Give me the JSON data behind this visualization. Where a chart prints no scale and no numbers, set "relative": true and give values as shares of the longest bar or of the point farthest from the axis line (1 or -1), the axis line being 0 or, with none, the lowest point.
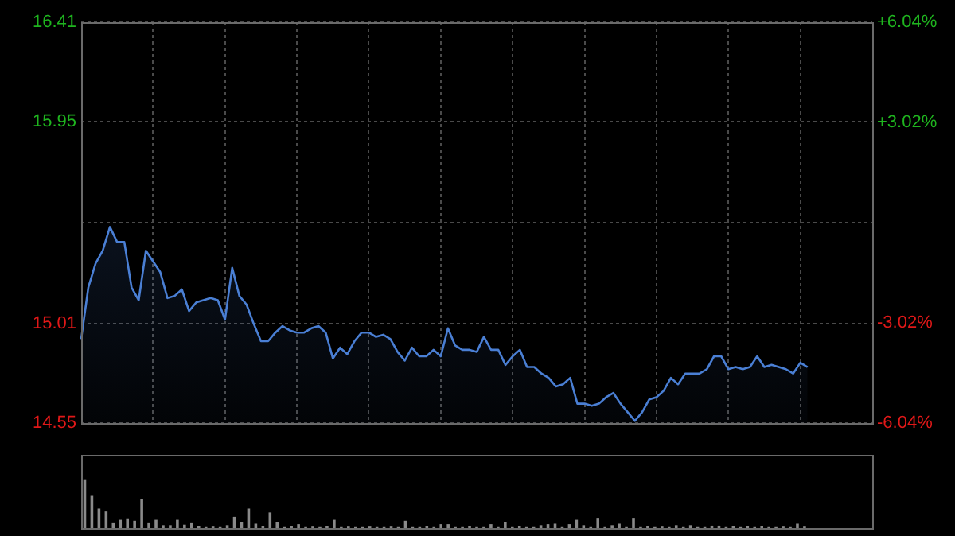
{
  "chart_data": [
    {
      "type": "area",
      "color": "#4a7fd4",
      "grid": true,
      "tick_labels": "y",
      "categories": [
        null,
        null,
        null,
        null,
        null,
        null,
        null,
        null,
        null,
        null,
        null,
        null,
        null,
        null,
        null,
        null,
        null,
        null,
        null,
        null,
        null,
        null,
        null,
        null,
        null,
        null,
        null,
        null,
        null,
        null,
        null,
        null,
        null,
        null,
        null,
        null,
        null,
        null,
        null,
        null,
        null,
        null,
        null,
        null,
        null,
        null,
        null,
        null,
        null,
        null,
        null,
        null,
        null,
        null,
        null,
        null,
        null,
        null,
        null,
        null,
        null,
        null,
        null,
        null,
        null,
        null,
        null,
        null,
        null,
        null,
        null,
        null,
        null,
        null,
        null,
        null,
        null,
        null,
        null,
        null,
        null,
        null,
        null,
        null,
        null,
        null,
        null,
        null,
        null,
        null,
        null,
        null,
        null,
        null,
        null,
        null,
        null,
        null,
        null,
        null,
        null,
        null,
        null,
        null,
        null,
        null,
        null,
        null,
        null,
        null,
        null
      ],
      "values": [
        14.94,
        15.18,
        15.29,
        15.35,
        15.46,
        15.39,
        15.39,
        15.18,
        15.12,
        15.35,
        15.3,
        15.25,
        15.13,
        15.14,
        15.17,
        15.07,
        15.11,
        15.12,
        15.13,
        15.12,
        15.03,
        15.27,
        15.14,
        15.1,
        15.01,
        14.93,
        14.93,
        14.97,
        15.0,
        14.98,
        14.97,
        14.97,
        14.99,
        15.0,
        14.97,
        14.85,
        14.9,
        14.87,
        14.93,
        14.97,
        14.97,
        14.95,
        14.96,
        14.94,
        14.88,
        14.84,
        14.9,
        14.86,
        14.86,
        14.89,
        14.86,
        14.99,
        14.91,
        14.89,
        14.89,
        14.88,
        14.95,
        14.89,
        14.89,
        14.82,
        14.86,
        14.89,
        14.81,
        14.81,
        14.78,
        14.76,
        14.72,
        14.73,
        14.76,
        14.64,
        14.64,
        14.63,
        14.64,
        14.67,
        14.69,
        14.64,
        14.6,
        14.56,
        14.6,
        14.66,
        14.67,
        14.7,
        14.76,
        14.73,
        14.78,
        14.78,
        14.78,
        14.8,
        14.86,
        14.86,
        14.8,
        14.81,
        14.8,
        14.81,
        14.86,
        14.81,
        14.82,
        14.81,
        14.8,
        14.78,
        14.83,
        14.81,
        null,
        null,
        null,
        null,
        null,
        null,
        null,
        null,
        null
      ],
      "ylim": [
        14.55,
        16.41
      ],
      "yticks": [
        14.55,
        15.01,
        {
          "value": 15.48,
          "label": null
        },
        15.95,
        16.41
      ],
      "y2lim": [
        -6.04,
        6.04
      ],
      "y2ticks": [
        {
          "value": -6.04,
          "label": "-6.04%"
        },
        {
          "value": -3.02,
          "label": "-3.02%"
        },
        {
          "value": 3.02,
          "label": "+3.02%"
        },
        {
          "value": 6.04,
          "label": "+6.04%"
        }
      ]
    },
    {
      "type": "bar",
      "relative": true,
      "color": "#8a8a8a",
      "tick_labels": false,
      "categories": [
        null,
        null,
        null,
        null,
        null,
        null,
        null,
        null,
        null,
        null,
        null,
        null,
        null,
        null,
        null,
        null,
        null,
        null,
        null,
        null,
        null,
        null,
        null,
        null,
        null,
        null,
        null,
        null,
        null,
        null,
        null,
        null,
        null,
        null,
        null,
        null,
        null,
        null,
        null,
        null,
        null,
        null,
        null,
        null,
        null,
        null,
        null,
        null,
        null,
        null,
        null,
        null,
        null,
        null,
        null,
        null,
        null,
        null,
        null,
        null,
        null,
        null,
        null,
        null,
        null,
        null,
        null,
        null,
        null,
        null,
        null,
        null,
        null,
        null,
        null,
        null,
        null,
        null,
        null,
        null,
        null,
        null,
        null,
        null,
        null,
        null,
        null,
        null,
        null,
        null,
        null,
        null,
        null,
        null,
        null,
        null,
        null,
        null,
        null,
        null,
        null,
        null,
        null,
        null,
        null,
        null,
        null,
        null,
        null,
        null,
        null
      ],
      "values": [
        1,
        0.66,
        0.4,
        0.34,
        0.1,
        0.17,
        0.2,
        0.15,
        0.6,
        0.1,
        0.17,
        0.06,
        0.06,
        0.17,
        0.07,
        0.1,
        0.04,
        0.02,
        0.03,
        0.02,
        0.06,
        0.23,
        0.13,
        0.4,
        0.09,
        0.04,
        0.32,
        0.13,
        0.02,
        0.04,
        0.08,
        0.02,
        0.03,
        0.02,
        0.04,
        0.17,
        0.02,
        0.03,
        0.02,
        0.02,
        0.03,
        0.02,
        0.02,
        0.03,
        0.02,
        0.15,
        0.02,
        0.02,
        0.04,
        0.02,
        0.08,
        0.08,
        0.02,
        0.02,
        0.04,
        0.02,
        0.02,
        0.08,
        0.02,
        0.13,
        0.02,
        0.04,
        0.02,
        0.02,
        0.06,
        0.08,
        0.09,
        0.02,
        0.08,
        0.17,
        0.06,
        0.02,
        0.21,
        0.02,
        0.06,
        0.09,
        0.02,
        0.21,
        0.02,
        0.04,
        0.02,
        0.03,
        0.02,
        0.06,
        0.02,
        0.06,
        0.02,
        0.02,
        0.05,
        0.05,
        0.02,
        0.04,
        0.02,
        0.04,
        0.02,
        0.04,
        0.02,
        0.02,
        0.03,
        0.02,
        0.09,
        0.03,
        null,
        null,
        null,
        null,
        null,
        null,
        null,
        null,
        null
      ]
    }
  ]
}
